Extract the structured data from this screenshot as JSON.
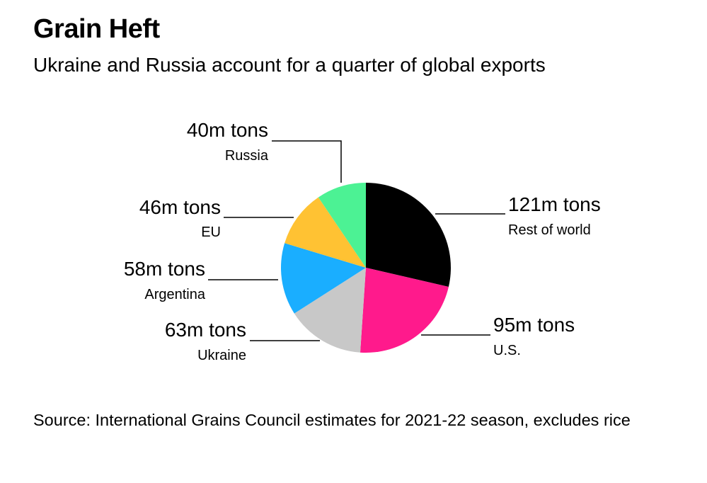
{
  "header": {
    "title": "Grain Heft",
    "subtitle": "Ukraine and Russia account for a quarter of global exports"
  },
  "chart_data": {
    "type": "pie",
    "title": "Grain Heft",
    "subtitle": "Ukraine and Russia account for a quarter of global exports",
    "unit": "m tons",
    "slices": [
      {
        "label": "Rest of world",
        "value": 121,
        "value_label": "121m tons",
        "color": "#000000"
      },
      {
        "label": "U.S.",
        "value": 95,
        "value_label": "95m tons",
        "color": "#ff1a8c"
      },
      {
        "label": "Ukraine",
        "value": 63,
        "value_label": "63m tons",
        "color": "#c8c8c8"
      },
      {
        "label": "Argentina",
        "value": 58,
        "value_label": "58m tons",
        "color": "#1aaeff"
      },
      {
        "label": "EU",
        "value": 46,
        "value_label": "46m tons",
        "color": "#ffc233"
      },
      {
        "label": "Russia",
        "value": 40,
        "value_label": "40m tons",
        "color": "#4cf294"
      }
    ]
  },
  "footer": {
    "source": "Source: International Grains Council estimates for 2021-22 season, excludes rice"
  }
}
